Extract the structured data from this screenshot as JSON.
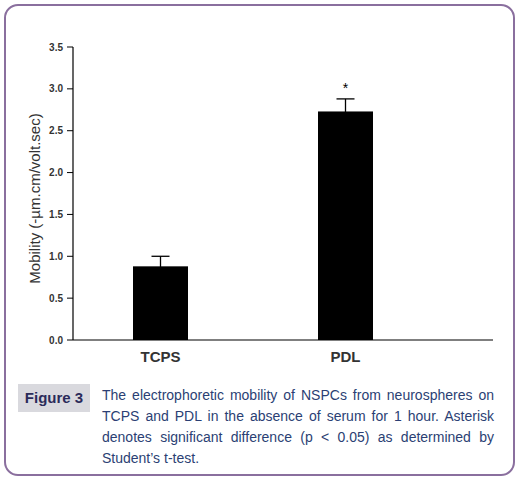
{
  "chart_data": {
    "type": "bar",
    "categories": [
      "TCPS",
      "PDL"
    ],
    "values": [
      0.88,
      2.73
    ],
    "errors": [
      0.12,
      0.15
    ],
    "color": "#000000",
    "y_label": "Mobility (-µm.cm/volt.sec)",
    "ylim": [
      0,
      3.5
    ],
    "yticks": [
      {
        "value": 0,
        "label": "0.0"
      },
      0.5,
      {
        "value": 1,
        "label": "1.0"
      },
      1.5,
      {
        "value": 2,
        "label": "2.0"
      },
      2.5,
      {
        "value": 3,
        "label": "3.0"
      },
      3.5
    ],
    "grid": false,
    "annotations": [
      {
        "text": "*",
        "category": "PDL"
      }
    ],
    "figure_label": "Figure 3",
    "caption": "The electrophoretic mobility of NSPCs from neurospheres on TCPS and PDL in the absence of serum for 1 hour. Asterisk denotes significant difference (p < 0.05) as determined by Student’s t-test."
  }
}
